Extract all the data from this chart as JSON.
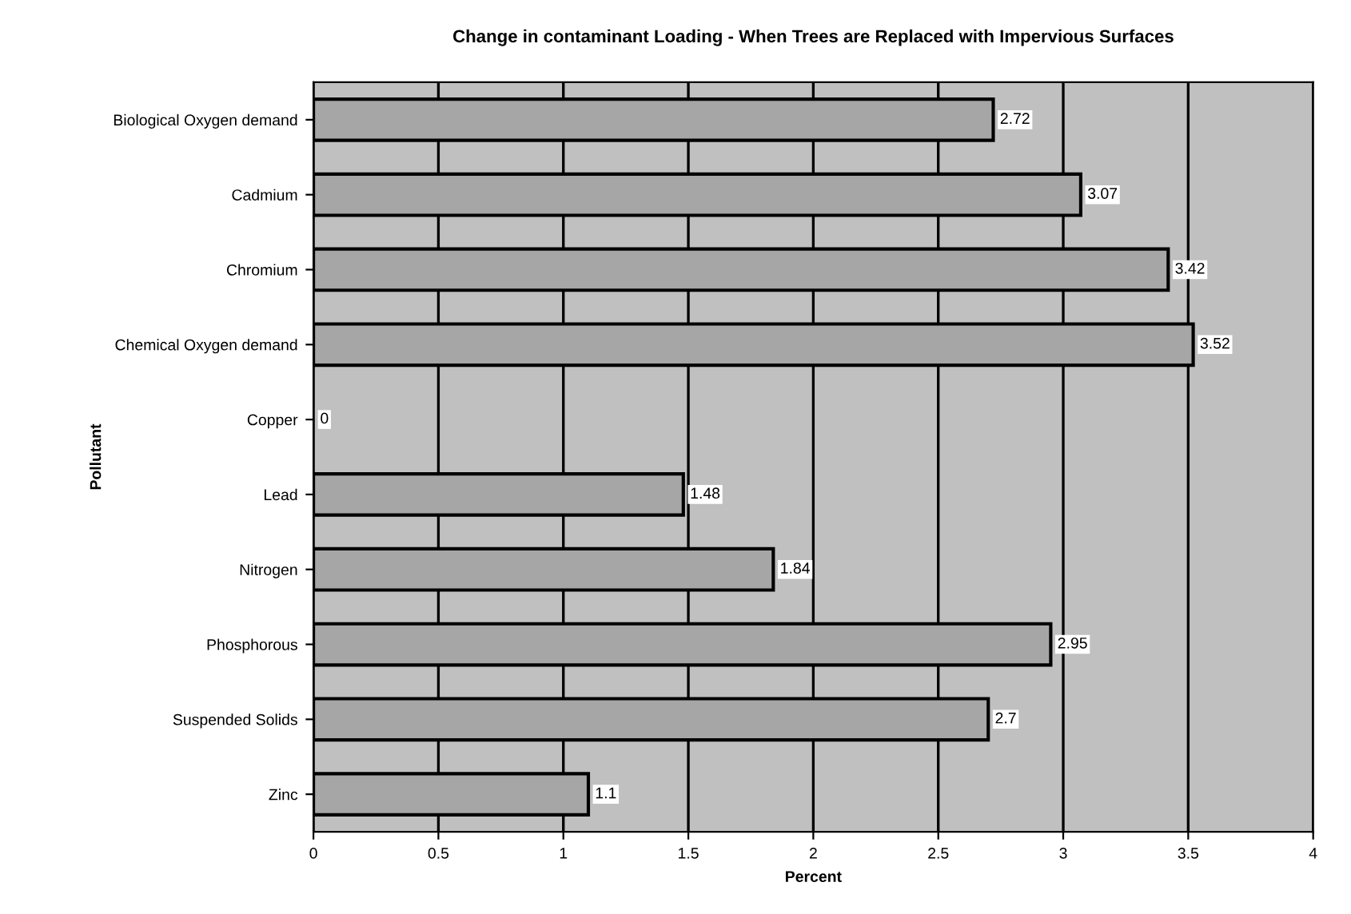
{
  "chart_data": {
    "type": "bar",
    "orientation": "horizontal",
    "title": "Change in contaminant Loading - When Trees are Replaced with Impervious Surfaces",
    "xlabel": "Percent",
    "ylabel": "Pollutant",
    "categories": [
      "Biological Oxygen demand",
      "Cadmium",
      "Chromium",
      "Chemical Oxygen demand",
      "Copper",
      "Lead",
      "Nitrogen",
      "Phosphorous",
      "Suspended Solids",
      "Zinc"
    ],
    "values": [
      2.72,
      3.07,
      3.42,
      3.52,
      0,
      1.48,
      1.84,
      2.95,
      2.7,
      1.1
    ],
    "color": "#a6a6a6",
    "data_labels": true,
    "xlim": [
      0,
      4
    ],
    "xticks": [
      0,
      0.5,
      1,
      1.5,
      2,
      2.5,
      3,
      3.5,
      4
    ],
    "grid": "x",
    "legend": false
  }
}
